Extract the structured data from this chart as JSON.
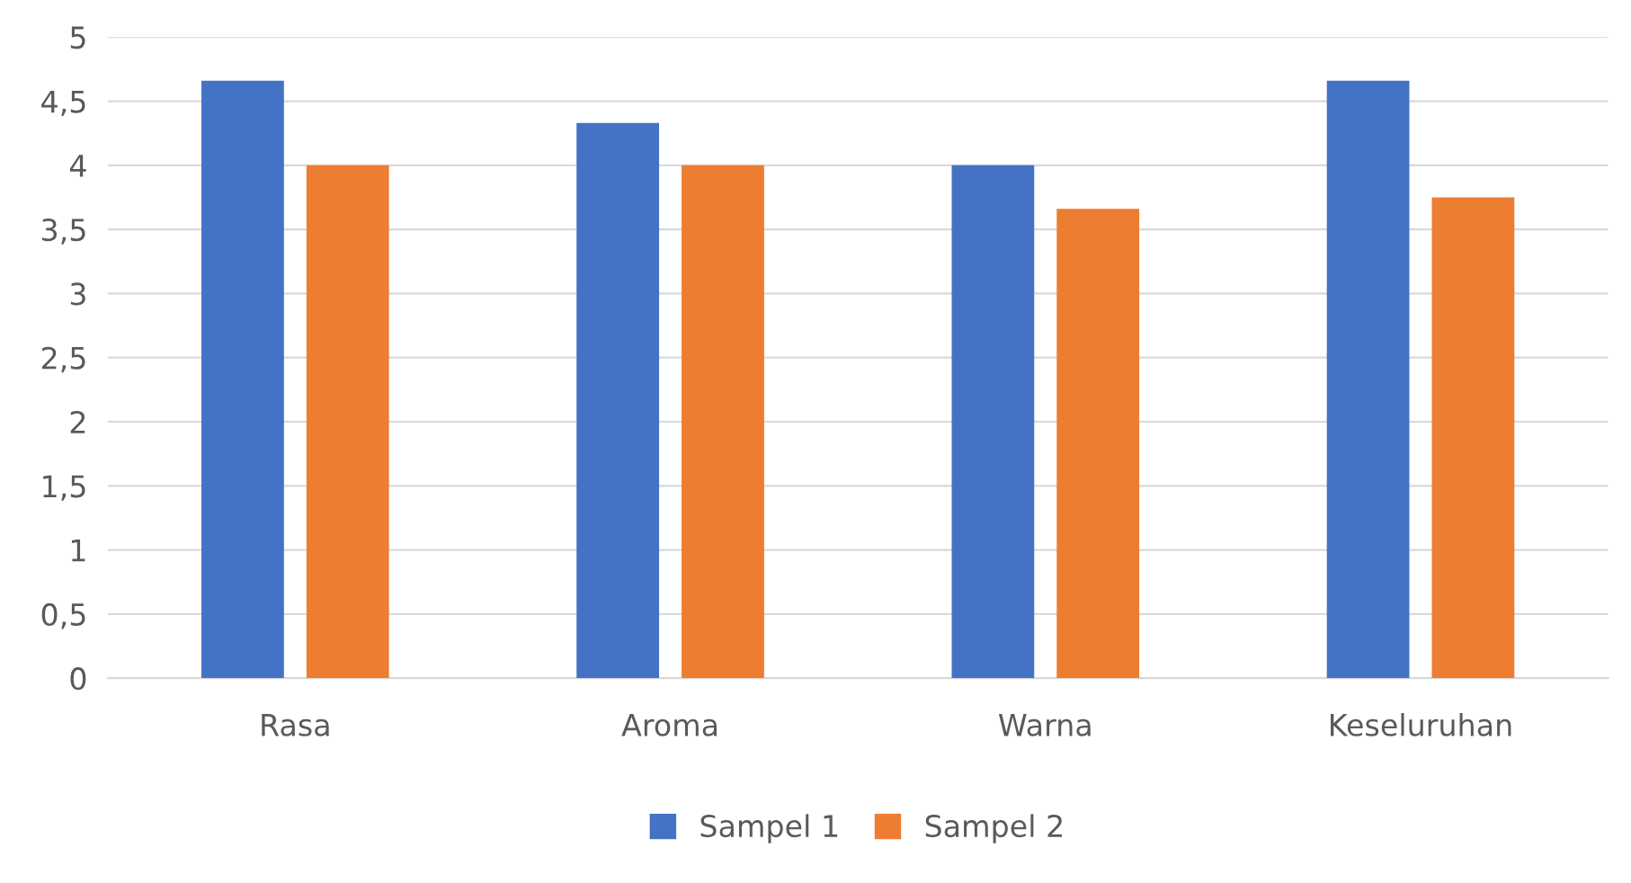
{
  "chart_data": {
    "type": "bar",
    "categories": [
      "Rasa",
      "Aroma",
      "Warna",
      "Keseluruhan"
    ],
    "series": [
      {
        "name": "Sampel 1",
        "color": "#4472c4",
        "values": [
          4.66,
          4.33,
          4.0,
          4.66
        ]
      },
      {
        "name": "Sampel 2",
        "color": "#ed7d31",
        "values": [
          4.0,
          4.0,
          3.66,
          3.75
        ]
      }
    ],
    "ylim": [
      0,
      5
    ],
    "yticks": [
      0,
      {
        "value": 0.5,
        "label": "0,5"
      },
      1,
      {
        "value": 1.5,
        "label": "1,5"
      },
      2,
      {
        "value": 2.5,
        "label": "2,5"
      },
      3,
      {
        "value": 3.5,
        "label": "3,5"
      },
      4,
      {
        "value": 4.5,
        "label": "4,5"
      },
      5
    ],
    "grid": "y",
    "legend": "bottom"
  }
}
